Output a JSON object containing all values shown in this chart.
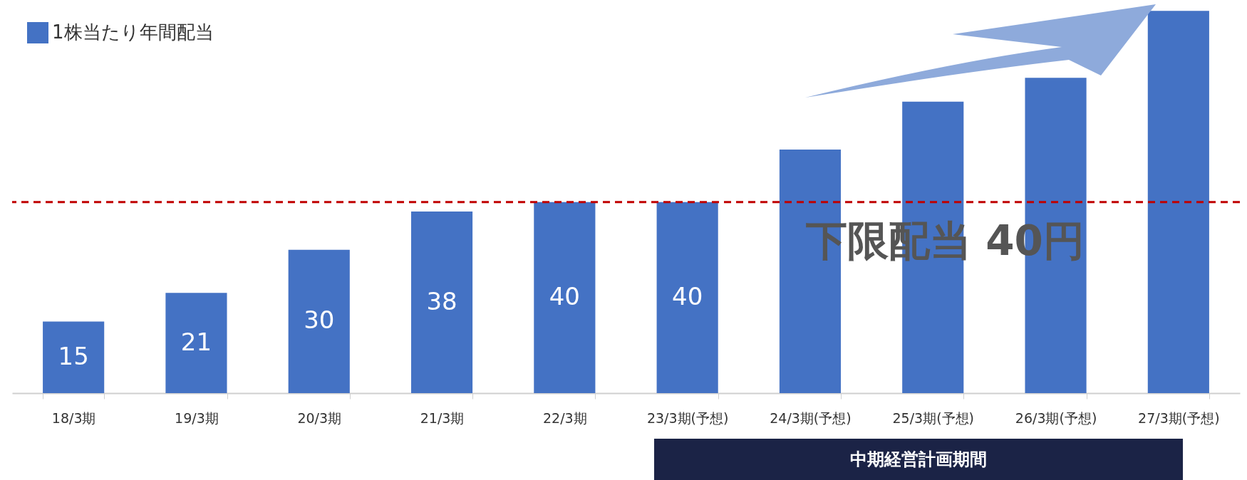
{
  "chart_data": {
    "type": "bar",
    "categories": [
      "18/3期",
      "19/3期",
      "20/3期",
      "21/3期",
      "22/3期",
      "23/3期(予想)",
      "24/3期(予想)",
      "25/3期(予想)",
      "26/3期(予想)",
      "27/3期(予想)"
    ],
    "series": [
      {
        "name": "1株当たり年間配当",
        "color": "#4472c4",
        "values": [
          15,
          21,
          30,
          38,
          40,
          40,
          51,
          61,
          66,
          80
        ],
        "value_labels": [
          "15",
          "21",
          "30",
          "38",
          "40",
          "40",
          null,
          null,
          null,
          null
        ]
      }
    ],
    "legend": "top left",
    "ref_lines": [
      {
        "axis": "y",
        "value": 40,
        "label": "下限配当 40円",
        "color": "#c00000",
        "line_style": "dashed"
      }
    ],
    "annotations": [
      "中期経営計画期間"
    ]
  }
}
